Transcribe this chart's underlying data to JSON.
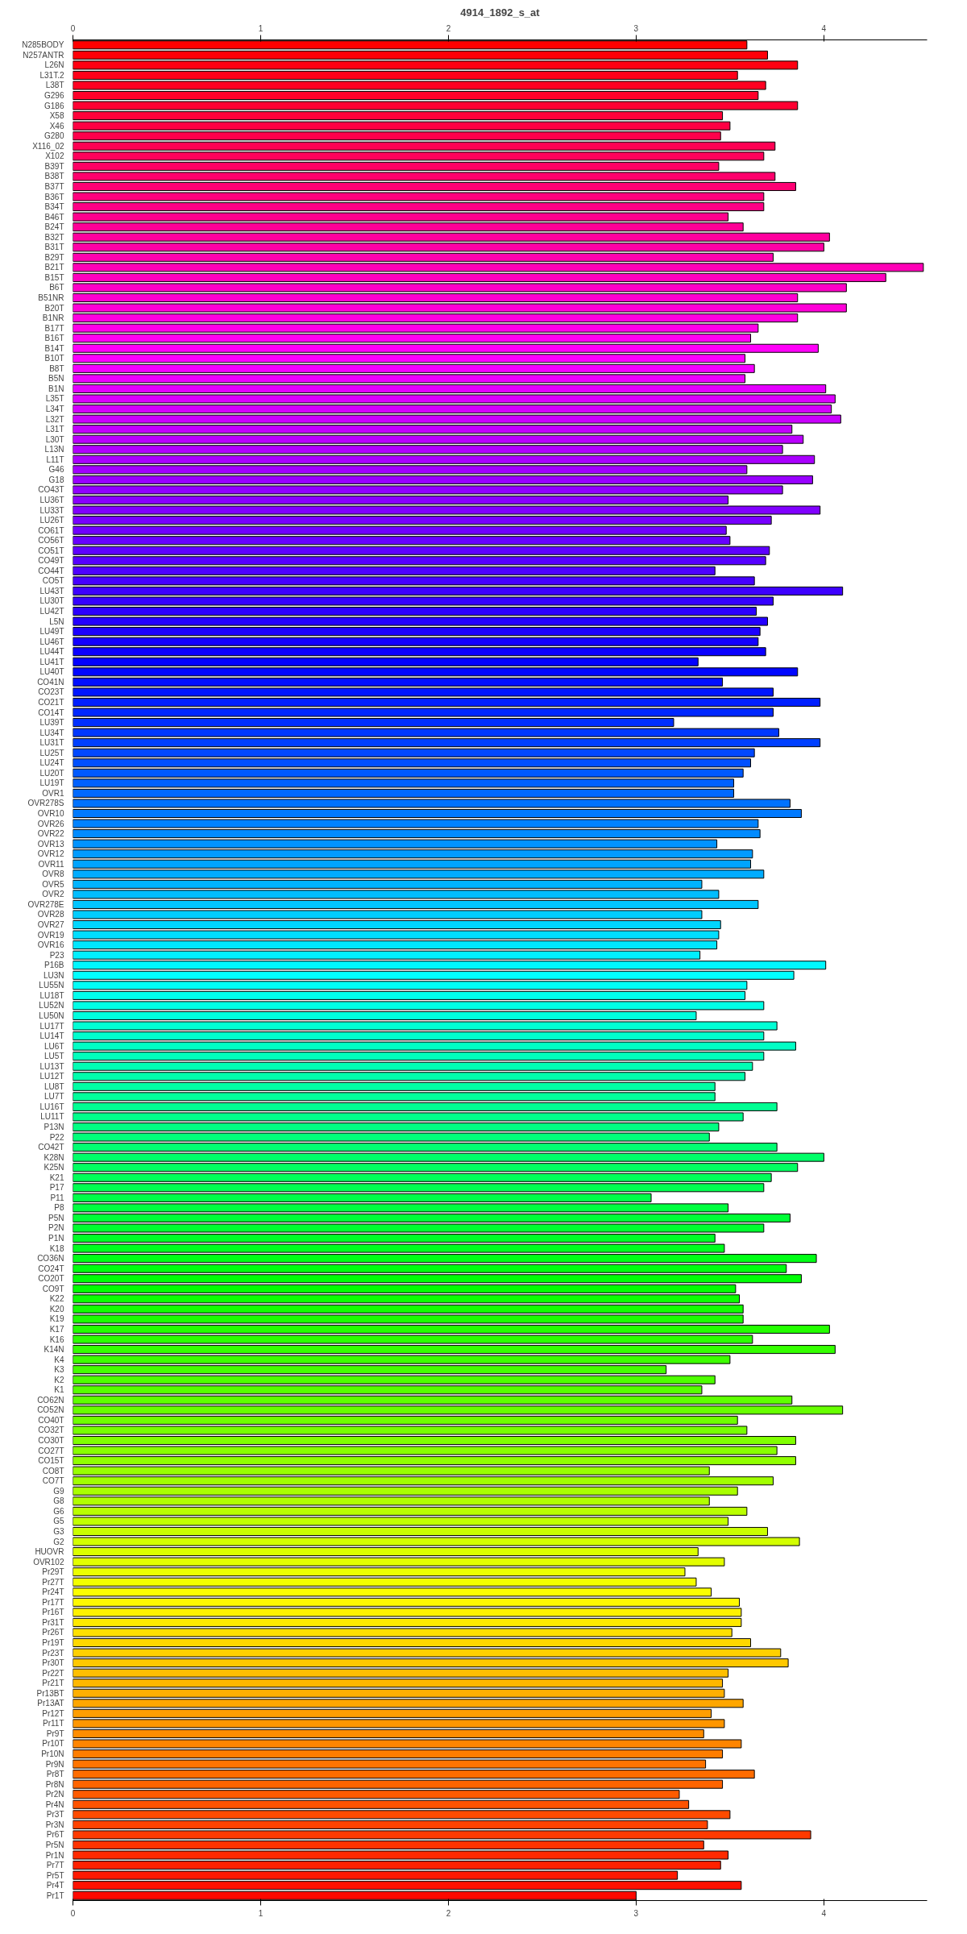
{
  "chart_data": {
    "type": "bar",
    "orientation": "horizontal",
    "title": "4914_1892_s_at",
    "categories": [
      "N285BODY",
      "N257ANTR",
      "L26N",
      "L31T.2",
      "L38T",
      "G296",
      "G186",
      "X58",
      "X46",
      "G280",
      "X116_02",
      "X102",
      "B39T",
      "B38T",
      "B37T",
      "B36T",
      "B34T",
      "B46T",
      "B24T",
      "B32T",
      "B31T",
      "B29T",
      "B21T",
      "B15T",
      "B6T",
      "B51NR",
      "B20T",
      "B1NR",
      "B17T",
      "B16T",
      "B14T",
      "B10T",
      "B8T",
      "B5N",
      "B1N",
      "L35T",
      "L34T",
      "L32T",
      "L31T",
      "L30T",
      "L13N",
      "L11T",
      "G46",
      "G18",
      "CO43T",
      "LU36T",
      "LU33T",
      "LU26T",
      "CO61T",
      "CO56T",
      "CO51T",
      "CO49T",
      "CO44T",
      "CO5T",
      "LU43T",
      "LU30T",
      "LU42T",
      "L5N",
      "LU49T",
      "LU46T",
      "LU44T",
      "LU41T",
      "LU40T",
      "CO41N",
      "CO23T",
      "CO21T",
      "CO14T",
      "LU39T",
      "LU34T",
      "LU31T",
      "LU25T",
      "LU24T",
      "LU20T",
      "LU19T",
      "OVR1",
      "OVR278S",
      "OVR10",
      "OVR26",
      "OVR22",
      "OVR13",
      "OVR12",
      "OVR11",
      "OVR8",
      "OVR5",
      "OVR2",
      "OVR278E",
      "OVR28",
      "OVR27",
      "OVR19",
      "OVR16",
      "P23",
      "P16B",
      "LU3N",
      "LU55N",
      "LU18T",
      "LU52N",
      "LU50N",
      "LU17T",
      "LU14T",
      "LU6T",
      "LU5T",
      "LU13T",
      "LU12T",
      "LU8T",
      "LU7T",
      "LU16T",
      "LU11T",
      "P13N",
      "P22",
      "CO42T",
      "K28N",
      "K25N",
      "K21",
      "P17",
      "P11",
      "P8",
      "P5N",
      "P2N",
      "P1N",
      "K18",
      "CO36N",
      "CO24T",
      "CO20T",
      "CO9T",
      "K22",
      "K20",
      "K19",
      "K17",
      "K16",
      "K14N",
      "K4",
      "K3",
      "K2",
      "K1",
      "CO62N",
      "CO52N",
      "CO40T",
      "CO32T",
      "CO30T",
      "CO27T",
      "CO15T",
      "CO8T",
      "CO7T",
      "G9",
      "G8",
      "G6",
      "G5",
      "G3",
      "G2",
      "HUOVR",
      "OVR102",
      "Pr29T",
      "Pr27T",
      "Pr24T",
      "Pr17T",
      "Pr16T",
      "Pr31T",
      "Pr26T",
      "Pr19T",
      "Pr23T",
      "Pr30T",
      "Pr22T",
      "Pr21T",
      "Pr13BT",
      "Pr13AT",
      "Pr12T",
      "Pr11T",
      "Pr9T",
      "Pr10T",
      "Pr10N",
      "Pr9N",
      "Pr8T",
      "Pr8N",
      "Pr2N",
      "Pr4N",
      "Pr3T",
      "Pr3N",
      "Pr6T",
      "Pr5N",
      "Pr1N",
      "Pr7T",
      "Pr5T",
      "Pr4T",
      "Pr1T"
    ],
    "values": [
      3.59,
      3.7,
      3.86,
      3.54,
      3.69,
      3.65,
      3.86,
      3.46,
      3.5,
      3.45,
      3.74,
      3.68,
      3.44,
      3.74,
      3.85,
      3.68,
      3.68,
      3.49,
      3.57,
      4.03,
      4.0,
      3.73,
      4.53,
      4.33,
      4.12,
      3.86,
      4.12,
      3.86,
      3.65,
      3.61,
      3.97,
      3.58,
      3.63,
      3.58,
      4.01,
      4.06,
      4.04,
      4.09,
      3.83,
      3.89,
      3.78,
      3.95,
      3.59,
      3.94,
      3.78,
      3.49,
      3.98,
      3.72,
      3.48,
      3.5,
      3.71,
      3.69,
      3.42,
      3.63,
      4.1,
      3.73,
      3.64,
      3.7,
      3.66,
      3.65,
      3.69,
      3.33,
      3.86,
      3.46,
      3.73,
      3.98,
      3.73,
      3.2,
      3.76,
      3.98,
      3.63,
      3.61,
      3.57,
      3.52,
      3.52,
      3.82,
      3.88,
      3.65,
      3.66,
      3.43,
      3.62,
      3.61,
      3.68,
      3.35,
      3.44,
      3.65,
      3.35,
      3.45,
      3.44,
      3.43,
      3.34,
      4.01,
      3.84,
      3.59,
      3.58,
      3.68,
      3.32,
      3.75,
      3.68,
      3.85,
      3.68,
      3.62,
      3.58,
      3.42,
      3.42,
      3.75,
      3.57,
      3.44,
      3.39,
      3.75,
      4.0,
      3.86,
      3.72,
      3.68,
      3.08,
      3.49,
      3.82,
      3.68,
      3.42,
      3.47,
      3.96,
      3.8,
      3.88,
      3.53,
      3.55,
      3.57,
      3.57,
      4.03,
      3.62,
      4.06,
      3.5,
      3.16,
      3.42,
      3.35,
      3.83,
      4.1,
      3.54,
      3.59,
      3.85,
      3.75,
      3.85,
      3.39,
      3.73,
      3.54,
      3.39,
      3.59,
      3.49,
      3.7,
      3.87,
      3.33,
      3.47,
      3.26,
      3.32,
      3.4,
      3.55,
      3.56,
      3.56,
      3.51,
      3.61,
      3.77,
      3.81,
      3.49,
      3.46,
      3.47,
      3.57,
      3.4,
      3.47,
      3.36,
      3.56,
      3.46,
      3.37,
      3.63,
      3.46,
      3.23,
      3.28,
      3.5,
      3.38,
      3.93,
      3.36,
      3.49,
      3.45,
      3.22,
      3.56,
      3.0
    ],
    "colors": [
      "#ff0000",
      "#ff0008",
      "#ff0011",
      "#ff0019",
      "#ff0021",
      "#ff002a",
      "#ff0032",
      "#ff003a",
      "#ff0043",
      "#ff004b",
      "#ff0053",
      "#ff005b",
      "#ff0064",
      "#ff006c",
      "#ff0074",
      "#ff007d",
      "#ff0085",
      "#ff008d",
      "#ff0096",
      "#ff009e",
      "#ff00a6",
      "#ff00af",
      "#ff00b7",
      "#ff00bf",
      "#ff00c8",
      "#ff00d0",
      "#ff00d8",
      "#ff00e0",
      "#ff00e9",
      "#ff00f1",
      "#ff00f9",
      "#fc00ff",
      "#f400ff",
      "#ec00ff",
      "#e300ff",
      "#db00ff",
      "#d300ff",
      "#ca00ff",
      "#c200ff",
      "#ba00ff",
      "#b100ff",
      "#a900ff",
      "#a100ff",
      "#9800ff",
      "#9000ff",
      "#8800ff",
      "#8000ff",
      "#7700ff",
      "#6f00ff",
      "#6700ff",
      "#5e00ff",
      "#5600ff",
      "#4e00ff",
      "#4500ff",
      "#3d00ff",
      "#3500ff",
      "#2c00ff",
      "#2400ff",
      "#1c00ff",
      "#1300ff",
      "#0b00ff",
      "#0300ff",
      "#0006ff",
      "#000eff",
      "#0016ff",
      "#001fff",
      "#0027ff",
      "#002fff",
      "#0037ff",
      "#0040ff",
      "#0048ff",
      "#0050ff",
      "#0059ff",
      "#0061ff",
      "#0069ff",
      "#0072ff",
      "#007aff",
      "#0082ff",
      "#008bff",
      "#0093ff",
      "#009bff",
      "#00a4ff",
      "#00acff",
      "#00b4ff",
      "#00bdff",
      "#00c5ff",
      "#00cdff",
      "#00d6ff",
      "#00deff",
      "#00e6ff",
      "#00efff",
      "#00f7ff",
      "#00ffff",
      "#00fff7",
      "#00ffee",
      "#00ffe6",
      "#00ffde",
      "#00ffd5",
      "#00ffcd",
      "#00ffc5",
      "#00ffbc",
      "#00ffb4",
      "#00ffac",
      "#00ffa4",
      "#00ff9b",
      "#00ff93",
      "#00ff8b",
      "#00ff82",
      "#00ff7a",
      "#00ff72",
      "#00ff69",
      "#00ff61",
      "#00ff59",
      "#00ff50",
      "#00ff48",
      "#00ff40",
      "#00ff37",
      "#00ff2f",
      "#00ff27",
      "#00ff1f",
      "#00ff16",
      "#00ff0e",
      "#00ff06",
      "#03ff00",
      "#0bff00",
      "#13ff00",
      "#1cff00",
      "#24ff00",
      "#2cff00",
      "#35ff00",
      "#3dff00",
      "#45ff00",
      "#4eff00",
      "#56ff00",
      "#5eff00",
      "#67ff00",
      "#6fff00",
      "#77ff00",
      "#80ff00",
      "#88ff00",
      "#90ff00",
      "#98ff00",
      "#a1ff00",
      "#a9ff00",
      "#b1ff00",
      "#baff00",
      "#c2ff00",
      "#caff00",
      "#d3ff00",
      "#dbff00",
      "#e3ff00",
      "#ecff00",
      "#f4ff00",
      "#fcff00",
      "#fff900",
      "#fff100",
      "#ffe900",
      "#ffe000",
      "#ffd800",
      "#ffd000",
      "#ffc800",
      "#ffbf00",
      "#ffb700",
      "#ffaf00",
      "#ffa600",
      "#ff9e00",
      "#ff9600",
      "#ff8d00",
      "#ff8500",
      "#ff7d00",
      "#ff7400",
      "#ff6c00",
      "#ff6400",
      "#ff5b00",
      "#ff5300",
      "#ff4b00",
      "#ff4300",
      "#ff3a00",
      "#ff3200",
      "#ff2a00",
      "#ff2100",
      "#ff1900",
      "#ff1100",
      "#ff0800"
    ],
    "xlim": [
      0,
      4.55
    ],
    "xticks": [
      0,
      1,
      2,
      3,
      4
    ],
    "x2lim": [
      0,
      4.55
    ],
    "x2ticks": [
      0,
      1,
      2,
      3,
      4
    ]
  }
}
